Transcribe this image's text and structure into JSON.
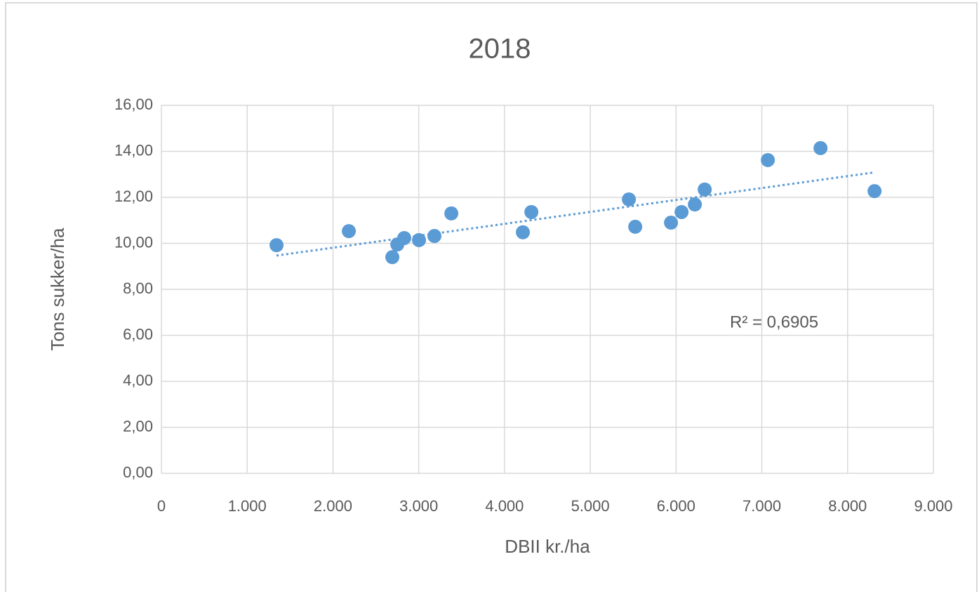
{
  "chart_data": {
    "type": "scatter",
    "title": "2018",
    "x_label": "DBII kr./ha",
    "y_label": "Tons sukker/ha",
    "annotation": "R² = 0,6905",
    "trendline": "linear",
    "color": "#5b9bd5",
    "series": [
      {
        "name": "Tons sukker/ha",
        "color": "#5b9bd5",
        "x": [
          1342,
          2185,
          2692,
          2750,
          2831,
          3003,
          3183,
          3380,
          4214,
          4313,
          5450,
          5524,
          5941,
          6064,
          6219,
          6334,
          7070,
          7684,
          8314
        ],
        "values": [
          9.92,
          10.53,
          9.4,
          9.95,
          10.23,
          10.14,
          10.32,
          11.3,
          10.48,
          11.36,
          11.91,
          10.72,
          10.9,
          11.36,
          11.69,
          12.34,
          13.62,
          14.14,
          12.27
        ]
      }
    ],
    "xlim": [
      0,
      9000
    ],
    "xticks": [
      0,
      {
        "value": 1000,
        "label": "1.000"
      },
      {
        "value": 2000,
        "label": "2.000"
      },
      {
        "value": 3000,
        "label": "3.000"
      },
      {
        "value": 4000,
        "label": "4.000"
      },
      {
        "value": 5000,
        "label": "5.000"
      },
      {
        "value": 6000,
        "label": "6.000"
      },
      {
        "value": 7000,
        "label": "7.000"
      },
      {
        "value": 8000,
        "label": "8.000"
      },
      {
        "value": 9000,
        "label": "9.000"
      }
    ],
    "ylim": [
      0,
      16
    ],
    "yticks": [
      {
        "value": 0,
        "label": "0,00"
      },
      {
        "value": 2,
        "label": "2,00"
      },
      {
        "value": 4,
        "label": "4,00"
      },
      {
        "value": 6,
        "label": "6,00"
      },
      {
        "value": 8,
        "label": "8,00"
      },
      {
        "value": 10,
        "label": "10,00"
      },
      {
        "value": 12,
        "label": "12,00"
      },
      {
        "value": 14,
        "label": "14,00"
      },
      {
        "value": 16,
        "label": "16,00"
      }
    ],
    "grid": true
  }
}
